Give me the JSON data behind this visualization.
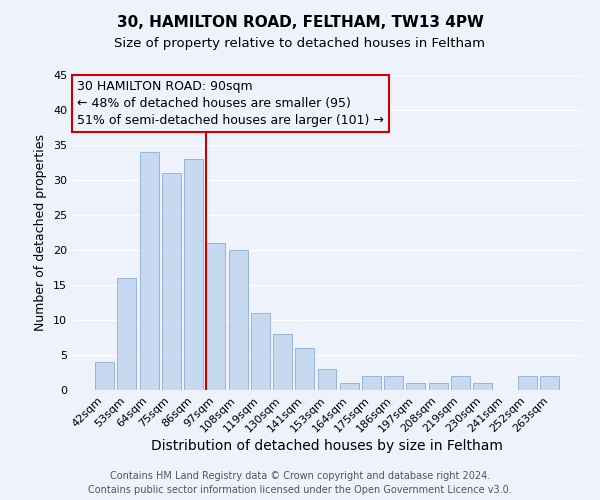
{
  "title": "30, HAMILTON ROAD, FELTHAM, TW13 4PW",
  "subtitle": "Size of property relative to detached houses in Feltham",
  "xlabel": "Distribution of detached houses by size in Feltham",
  "ylabel": "Number of detached properties",
  "categories": [
    "42sqm",
    "53sqm",
    "64sqm",
    "75sqm",
    "86sqm",
    "97sqm",
    "108sqm",
    "119sqm",
    "130sqm",
    "141sqm",
    "153sqm",
    "164sqm",
    "175sqm",
    "186sqm",
    "197sqm",
    "208sqm",
    "219sqm",
    "230sqm",
    "241sqm",
    "252sqm",
    "263sqm"
  ],
  "values": [
    4,
    16,
    34,
    31,
    33,
    21,
    20,
    11,
    8,
    6,
    3,
    1,
    2,
    2,
    1,
    1,
    2,
    1,
    0,
    2,
    2
  ],
  "bar_color": "#c6d9f0",
  "bar_edgecolor": "#8ab0d0",
  "ylim": [
    0,
    45
  ],
  "yticks": [
    0,
    5,
    10,
    15,
    20,
    25,
    30,
    35,
    40,
    45
  ],
  "vline_x": 4.545,
  "vline_color": "#cc0000",
  "annotation_title": "30 HAMILTON ROAD: 90sqm",
  "annotation_line1": "← 48% of detached houses are smaller (95)",
  "annotation_line2": "51% of semi-detached houses are larger (101) →",
  "annotation_box_color": "#cc0000",
  "footer_line1": "Contains HM Land Registry data © Crown copyright and database right 2024.",
  "footer_line2": "Contains public sector information licensed under the Open Government Licence v3.0.",
  "bg_color": "#eef2fb",
  "grid_color": "#ffffff",
  "title_fontsize": 11,
  "subtitle_fontsize": 9.5,
  "xlabel_fontsize": 10,
  "ylabel_fontsize": 9,
  "tick_fontsize": 8,
  "footer_fontsize": 7,
  "ann_fontsize": 9
}
